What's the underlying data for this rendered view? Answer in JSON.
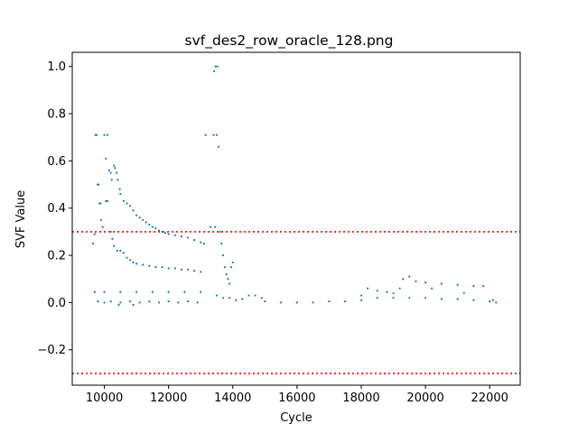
{
  "chart_data": {
    "type": "scatter",
    "title": "svf_des2_row_oracle_128.png",
    "xlabel": "Cycle",
    "ylabel": "SVF Value",
    "xlim": [
      9000,
      22950
    ],
    "ylim": [
      -0.35,
      1.06
    ],
    "xticks": [
      10000,
      12000,
      14000,
      16000,
      18000,
      20000,
      22000
    ],
    "xtick_labels": [
      "10000",
      "12000",
      "14000",
      "16000",
      "18000",
      "20000",
      "22000"
    ],
    "yticks": [
      -0.2,
      0.0,
      0.2,
      0.4,
      0.6,
      0.8,
      1.0
    ],
    "ytick_labels": [
      "−0.2",
      "0.0",
      "0.2",
      "0.4",
      "0.6",
      "0.8",
      "1.0"
    ],
    "grid": false,
    "marker_color": "#1f77b4",
    "threshold_color": "#ff0000",
    "thresholds": [
      0.3,
      -0.3
    ],
    "series": [
      {
        "points": [
          [
            9650,
            0.25
          ],
          [
            9700,
            0.29
          ],
          [
            9720,
            0.71
          ],
          [
            9760,
            0.71
          ],
          [
            9790,
            0.5
          ],
          [
            9820,
            0.5
          ],
          [
            9850,
            0.42
          ],
          [
            9880,
            0.42
          ],
          [
            9900,
            0.35
          ],
          [
            9950,
            0.32
          ],
          [
            10000,
            0.71
          ],
          [
            10050,
            0.61
          ],
          [
            10100,
            0.71
          ],
          [
            10150,
            0.56
          ],
          [
            10200,
            0.55
          ],
          [
            10230,
            0.52
          ],
          [
            10300,
            0.58
          ],
          [
            10330,
            0.57
          ],
          [
            10380,
            0.55
          ],
          [
            10420,
            0.52
          ],
          [
            10480,
            0.48
          ],
          [
            10500,
            0.46
          ],
          [
            10050,
            0.43
          ],
          [
            10100,
            0.43
          ],
          [
            10200,
            0.3
          ],
          [
            10250,
            0.27
          ],
          [
            10300,
            0.24
          ],
          [
            10400,
            0.22
          ],
          [
            10500,
            0.22
          ],
          [
            10600,
            0.21
          ],
          [
            10700,
            0.19
          ],
          [
            10800,
            0.18
          ],
          [
            10600,
            0.43
          ],
          [
            10700,
            0.42
          ],
          [
            10800,
            0.41
          ],
          [
            10900,
            0.39
          ],
          [
            11000,
            0.37
          ],
          [
            11100,
            0.36
          ],
          [
            11200,
            0.35
          ],
          [
            11300,
            0.34
          ],
          [
            11400,
            0.33
          ],
          [
            11500,
            0.32
          ],
          [
            11600,
            0.315
          ],
          [
            11700,
            0.305
          ],
          [
            11800,
            0.3
          ],
          [
            11900,
            0.295
          ],
          [
            12000,
            0.29
          ],
          [
            12200,
            0.285
          ],
          [
            12400,
            0.28
          ],
          [
            12600,
            0.275
          ],
          [
            12800,
            0.265
          ],
          [
            13000,
            0.255
          ],
          [
            13100,
            0.25
          ],
          [
            10900,
            0.17
          ],
          [
            11000,
            0.165
          ],
          [
            11200,
            0.16
          ],
          [
            11400,
            0.155
          ],
          [
            11600,
            0.15
          ],
          [
            11800,
            0.15
          ],
          [
            12000,
            0.145
          ],
          [
            12200,
            0.145
          ],
          [
            12400,
            0.14
          ],
          [
            12600,
            0.14
          ],
          [
            12800,
            0.135
          ],
          [
            13000,
            0.13
          ],
          [
            9700,
            0.045
          ],
          [
            10000,
            0.045
          ],
          [
            10500,
            0.045
          ],
          [
            11000,
            0.045
          ],
          [
            11500,
            0.045
          ],
          [
            12000,
            0.045
          ],
          [
            12500,
            0.045
          ],
          [
            13000,
            0.045
          ],
          [
            9800,
            0.005
          ],
          [
            10000,
            0.0
          ],
          [
            10200,
            0.005
          ],
          [
            10500,
            0.0
          ],
          [
            10800,
            0.005
          ],
          [
            11100,
            0.0
          ],
          [
            11400,
            0.005
          ],
          [
            11700,
            0.0
          ],
          [
            12000,
            0.005
          ],
          [
            12300,
            0.0
          ],
          [
            12600,
            0.005
          ],
          [
            12900,
            0.0
          ],
          [
            10450,
            -0.01
          ],
          [
            10900,
            -0.01
          ],
          [
            13150,
            0.71
          ],
          [
            13300,
            0.32
          ],
          [
            13450,
            0.32
          ],
          [
            13400,
            0.71
          ],
          [
            13500,
            0.71
          ],
          [
            13420,
            0.98
          ],
          [
            13460,
            1.0
          ],
          [
            13520,
            1.0
          ],
          [
            13560,
            0.66
          ],
          [
            13600,
            0.3
          ],
          [
            13650,
            0.25
          ],
          [
            13700,
            0.2
          ],
          [
            13750,
            0.15
          ],
          [
            13800,
            0.12
          ],
          [
            13850,
            0.1
          ],
          [
            13900,
            0.08
          ],
          [
            13950,
            0.15
          ],
          [
            14000,
            0.17
          ],
          [
            13500,
            0.03
          ],
          [
            13700,
            0.02
          ],
          [
            13900,
            0.02
          ],
          [
            14100,
            0.01
          ],
          [
            14300,
            0.015
          ],
          [
            14500,
            0.03
          ],
          [
            14700,
            0.03
          ],
          [
            14900,
            0.02
          ],
          [
            15000,
            0.005
          ],
          [
            15500,
            0.0
          ],
          [
            16000,
            0.0
          ],
          [
            16500,
            0.0
          ],
          [
            17000,
            0.005
          ],
          [
            17500,
            0.005
          ],
          [
            18000,
            0.01
          ],
          [
            18500,
            0.02
          ],
          [
            19000,
            0.02
          ],
          [
            19500,
            0.02
          ],
          [
            20000,
            0.02
          ],
          [
            20500,
            0.015
          ],
          [
            21000,
            0.015
          ],
          [
            21500,
            0.01
          ],
          [
            22000,
            0.005
          ],
          [
            22200,
            0.0
          ],
          [
            18200,
            0.06
          ],
          [
            18500,
            0.05
          ],
          [
            18800,
            0.045
          ],
          [
            19000,
            0.04
          ],
          [
            19300,
            0.1
          ],
          [
            19500,
            0.11
          ],
          [
            19700,
            0.09
          ],
          [
            20000,
            0.085
          ],
          [
            20500,
            0.08
          ],
          [
            21000,
            0.075
          ],
          [
            21500,
            0.07
          ],
          [
            21800,
            0.07
          ],
          [
            18000,
            0.03
          ],
          [
            19200,
            0.06
          ],
          [
            20200,
            0.06
          ],
          [
            21200,
            0.04
          ],
          [
            22100,
            0.01
          ]
        ]
      }
    ]
  }
}
